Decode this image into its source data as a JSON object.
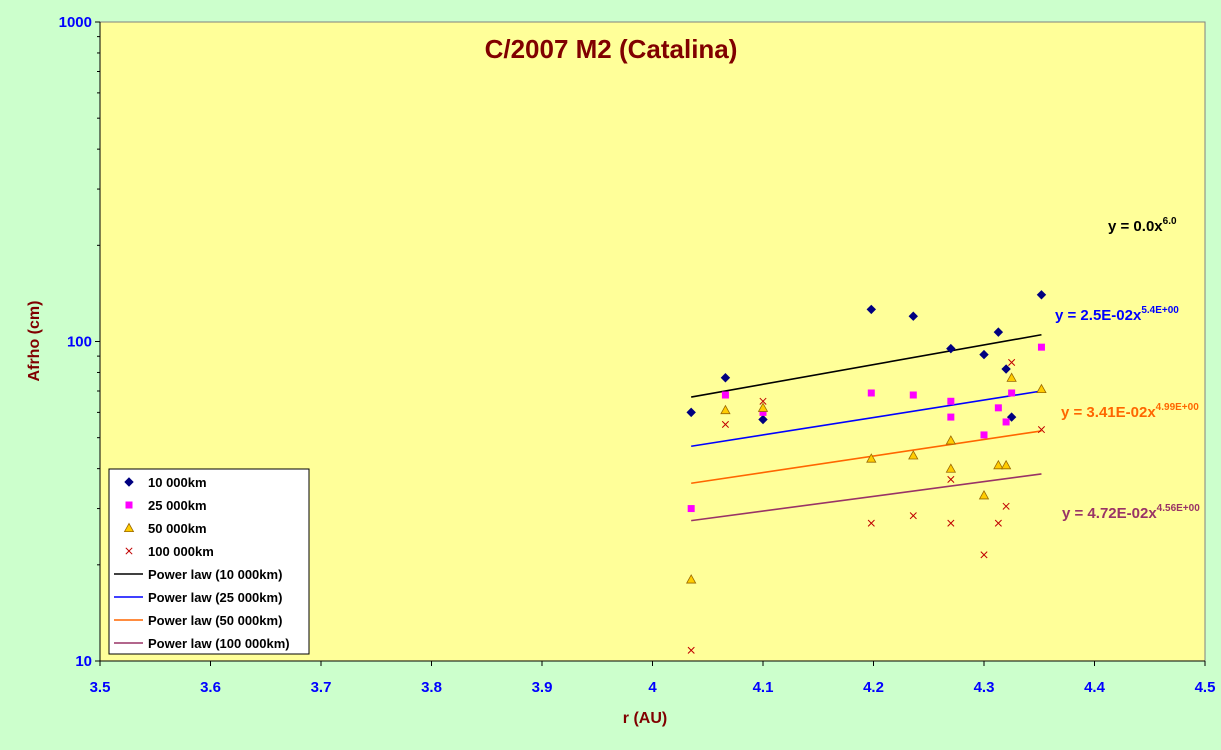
{
  "chart_data": {
    "type": "scatter",
    "title": "C/2007 M2 (Catalina)",
    "xlabel": "r (AU)",
    "ylabel": "Afrho (cm)",
    "xlim": [
      3.5,
      4.5
    ],
    "ylim": [
      10,
      1000
    ],
    "yscale": "log",
    "grid": false,
    "legend_position": "bottom-left",
    "x_ticks": [
      "3.5",
      "3.6",
      "3.7",
      "3.8",
      "3.9",
      "4",
      "4.1",
      "4.2",
      "4.3",
      "4.4",
      "4.5"
    ],
    "y_ticks": [
      "10",
      "100",
      "1000"
    ],
    "colors": {
      "plot_background": "#ffff99",
      "page_background": "#ccffcc"
    },
    "series": [
      {
        "name": "10 000km",
        "marker": "diamond",
        "color": "#000080",
        "points": [
          [
            4.035,
            60
          ],
          [
            4.066,
            77
          ],
          [
            4.1,
            57
          ],
          [
            4.198,
            126
          ],
          [
            4.236,
            120
          ],
          [
            4.27,
            95
          ],
          [
            4.3,
            91
          ],
          [
            4.313,
            107
          ],
          [
            4.32,
            82
          ],
          [
            4.325,
            58
          ],
          [
            4.352,
            140
          ]
        ]
      },
      {
        "name": "25 000km",
        "marker": "square",
        "color": "#ff00ff",
        "points": [
          [
            4.035,
            30
          ],
          [
            4.066,
            68
          ],
          [
            4.1,
            60
          ],
          [
            4.198,
            69
          ],
          [
            4.236,
            68
          ],
          [
            4.27,
            65
          ],
          [
            4.27,
            58
          ],
          [
            4.3,
            51
          ],
          [
            4.313,
            62
          ],
          [
            4.32,
            56
          ],
          [
            4.325,
            69
          ],
          [
            4.352,
            96
          ]
        ]
      },
      {
        "name": "50 000km",
        "marker": "triangle",
        "color": "#ffcc00",
        "points": [
          [
            4.035,
            18
          ],
          [
            4.066,
            61
          ],
          [
            4.1,
            62
          ],
          [
            4.198,
            43
          ],
          [
            4.236,
            44
          ],
          [
            4.27,
            49
          ],
          [
            4.27,
            40
          ],
          [
            4.3,
            33
          ],
          [
            4.313,
            41
          ],
          [
            4.32,
            41
          ],
          [
            4.325,
            77
          ],
          [
            4.352,
            71
          ]
        ]
      },
      {
        "name": "100 000km",
        "marker": "x",
        "color": "#c00000",
        "points": [
          [
            4.035,
            10.8
          ],
          [
            4.066,
            55
          ],
          [
            4.1,
            65
          ],
          [
            4.198,
            27
          ],
          [
            4.236,
            28.5
          ],
          [
            4.27,
            27
          ],
          [
            4.27,
            37
          ],
          [
            4.3,
            21.5
          ],
          [
            4.313,
            27
          ],
          [
            4.32,
            30.5
          ],
          [
            4.325,
            86
          ],
          [
            4.352,
            53
          ]
        ]
      }
    ],
    "fits": [
      {
        "name": "Power law (10 000km)",
        "color": "#000000",
        "x_range": [
          4.035,
          4.352
        ],
        "y_range": [
          67,
          105
        ],
        "equation": "y = 0.0x",
        "exponent": "6.0"
      },
      {
        "name": "Power law (25 000km)",
        "color": "#0000ff",
        "x_range": [
          4.035,
          4.352
        ],
        "y_range": [
          47,
          70
        ],
        "equation": "y = 2.5E-02x",
        "exponent": "5.4E+00"
      },
      {
        "name": "Power law (50 000km)",
        "color": "#ff6600",
        "x_range": [
          4.035,
          4.352
        ],
        "y_range": [
          36,
          52.5
        ],
        "equation": "y = 3.41E-02x",
        "exponent": "4.99E+00"
      },
      {
        "name": "Power law (100 000km)",
        "color": "#993366",
        "x_range": [
          4.035,
          4.352
        ],
        "y_range": [
          27.5,
          38.5
        ],
        "equation": "y = 4.72E-02x",
        "exponent": "4.56E+00"
      }
    ]
  }
}
